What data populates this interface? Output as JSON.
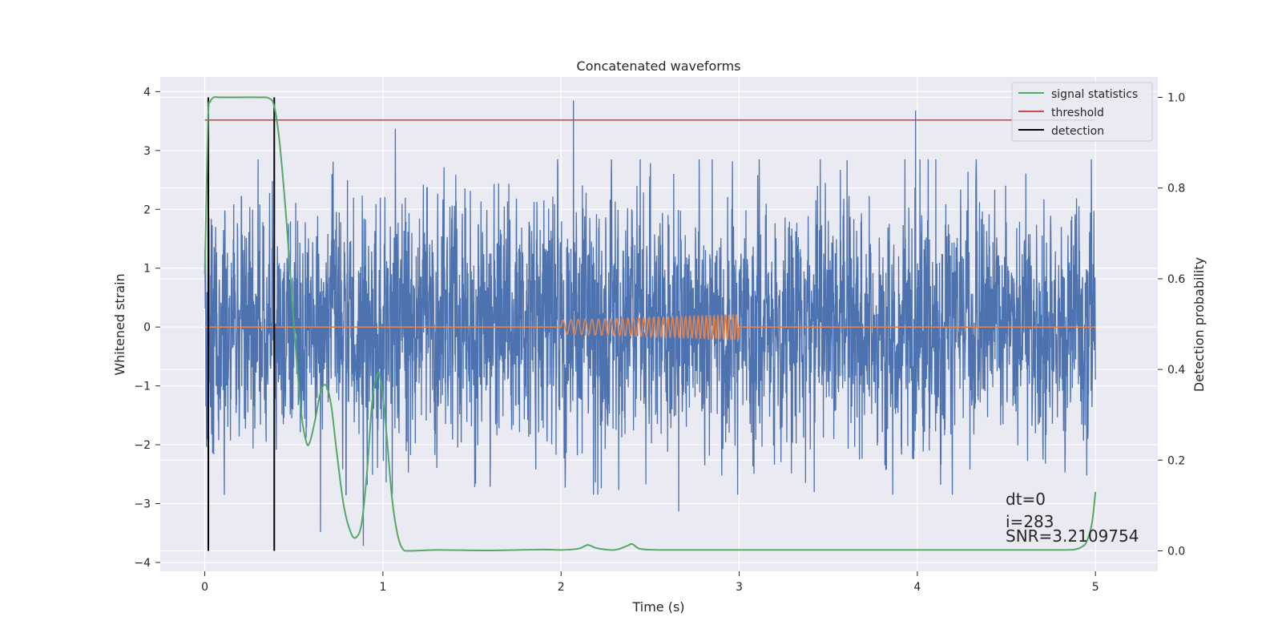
{
  "chart_data": {
    "type": "line",
    "title": "Concatenated waveforms",
    "xlabel": "Time (s)",
    "ylabel": "Whitened strain",
    "y2label": "Detection probability",
    "xlim": [
      -0.25,
      5.35
    ],
    "ylim": [
      -4.15,
      4.25
    ],
    "y2lim": [
      -0.045,
      1.045
    ],
    "xticks": [
      0,
      1,
      2,
      3,
      4,
      5
    ],
    "xtick_labels": [
      "0",
      "1",
      "2",
      "3",
      "4",
      "5"
    ],
    "yticks": [
      -4,
      -3,
      -2,
      -1,
      0,
      1,
      2,
      3,
      4
    ],
    "ytick_labels": [
      "−4",
      "−3",
      "−2",
      "−1",
      "0",
      "1",
      "2",
      "3",
      "4"
    ],
    "y2ticks": [
      0.0,
      0.2,
      0.4,
      0.6,
      0.8,
      1.0
    ],
    "y2tick_labels": [
      "0.0",
      "0.2",
      "0.4",
      "0.6",
      "0.8",
      "1.0"
    ],
    "grid": true,
    "legend_position": "top-right",
    "colors": {
      "strain": "#4c72b0",
      "injection": "#dd8452",
      "signal_statistics": "#55a868",
      "threshold": "#c44e52",
      "detection": "#000000",
      "background": "#eaeaf2",
      "grid": "#ffffff"
    },
    "series": [
      {
        "name": "signal statistics",
        "axis": "right",
        "x": [
          0.0,
          0.01,
          0.02,
          0.03,
          0.05,
          0.08,
          0.12,
          0.2,
          0.3,
          0.36,
          0.39,
          0.42,
          0.46,
          0.5,
          0.54,
          0.57,
          0.59,
          0.62,
          0.65,
          0.68,
          0.71,
          0.74,
          0.78,
          0.82,
          0.85,
          0.88,
          0.91,
          0.94,
          0.97,
          0.99,
          1.02,
          1.05,
          1.08,
          1.11,
          1.15,
          1.3,
          1.6,
          1.9,
          2.0,
          2.1,
          2.15,
          2.2,
          2.3,
          2.37,
          2.4,
          2.45,
          2.6,
          3.0,
          3.5,
          4.0,
          4.5,
          4.8,
          4.88,
          4.92,
          4.95,
          4.98,
          5.0
        ],
        "y": [
          0.61,
          0.8,
          0.97,
          0.99,
          1.0,
          1.0,
          1.0,
          1.0,
          1.0,
          0.998,
          0.98,
          0.9,
          0.72,
          0.5,
          0.31,
          0.24,
          0.24,
          0.29,
          0.35,
          0.365,
          0.32,
          0.22,
          0.1,
          0.04,
          0.03,
          0.06,
          0.17,
          0.33,
          0.39,
          0.37,
          0.26,
          0.12,
          0.04,
          0.005,
          0.0,
          0.002,
          0.001,
          0.003,
          0.002,
          0.005,
          0.013,
          0.006,
          0.002,
          0.011,
          0.015,
          0.004,
          0.002,
          0.002,
          0.002,
          0.002,
          0.002,
          0.002,
          0.003,
          0.008,
          0.02,
          0.06,
          0.13
        ]
      },
      {
        "name": "threshold",
        "axis": "right",
        "x": [
          0.0,
          5.0
        ],
        "y": [
          0.95,
          0.95
        ]
      },
      {
        "name": "detection",
        "axis": "right",
        "segments": [
          {
            "x": 0.02,
            "y": [
              0.0,
              1.0
            ]
          },
          {
            "x": 0.39,
            "y": [
              0.0,
              1.0
            ]
          }
        ]
      },
      {
        "axis": "left",
        "kind": "noise",
        "x_range": [
          0.0,
          5.0
        ],
        "samples": 4096,
        "spikes": [
          {
            "x": 2.07,
            "y": 3.85
          },
          {
            "x": 3.99,
            "y": 3.68
          },
          {
            "x": 1.07,
            "y": 3.37
          },
          {
            "x": 0.89,
            "y": -3.72
          },
          {
            "x": 2.66,
            "y": -3.13
          },
          {
            "x": 0.65,
            "y": -3.48
          }
        ]
      },
      {
        "axis": "left",
        "kind": "chirp",
        "x_range": [
          0.0,
          5.0
        ],
        "chirp_range": [
          2.0,
          3.0
        ],
        "amplitude_range": [
          0.12,
          0.21
        ],
        "frequency_range": [
          22,
          50
        ]
      }
    ],
    "annotations": [
      "dt=0",
      "i=283",
      "SNR=3.2109754"
    ]
  }
}
